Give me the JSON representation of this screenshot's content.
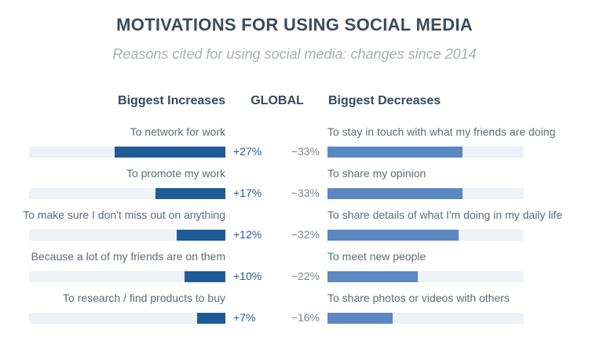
{
  "title": "MOTIVATIONS FOR USING SOCIAL MEDIA",
  "subtitle": "Reasons cited for using social media: changes since 2014",
  "headers": {
    "increases": "Biggest Increases",
    "global": "GLOBAL",
    "decreases": "Biggest Decreases"
  },
  "colors": {
    "increase_bar": "#1d5c96",
    "decrease_bar": "#5b88c2",
    "track": "#eef2f7"
  },
  "chart_data": [
    {
      "type": "bar",
      "title": "Biggest Increases",
      "categories": [
        "To network for work",
        "To promote my work",
        "To make sure I don't miss out on anything",
        "Because a lot of my friends are on them",
        "To research / find products to buy"
      ],
      "values": [
        27,
        17,
        12,
        10,
        7
      ],
      "value_labels": [
        "+27%",
        "+17%",
        "+12%",
        "+10%",
        "+7%"
      ],
      "unit": "%"
    },
    {
      "type": "bar",
      "title": "Biggest Decreases",
      "categories": [
        "To stay in touch with what my friends are doing",
        "To share my opinion",
        "To share details of what I'm doing in my daily life",
        "To meet new people",
        "To share photos or videos with others"
      ],
      "values": [
        -33,
        -33,
        -32,
        -22,
        -16
      ],
      "value_labels": [
        "−33%",
        "−33%",
        "−32%",
        "−22%",
        "−16%"
      ],
      "unit": "%"
    }
  ]
}
